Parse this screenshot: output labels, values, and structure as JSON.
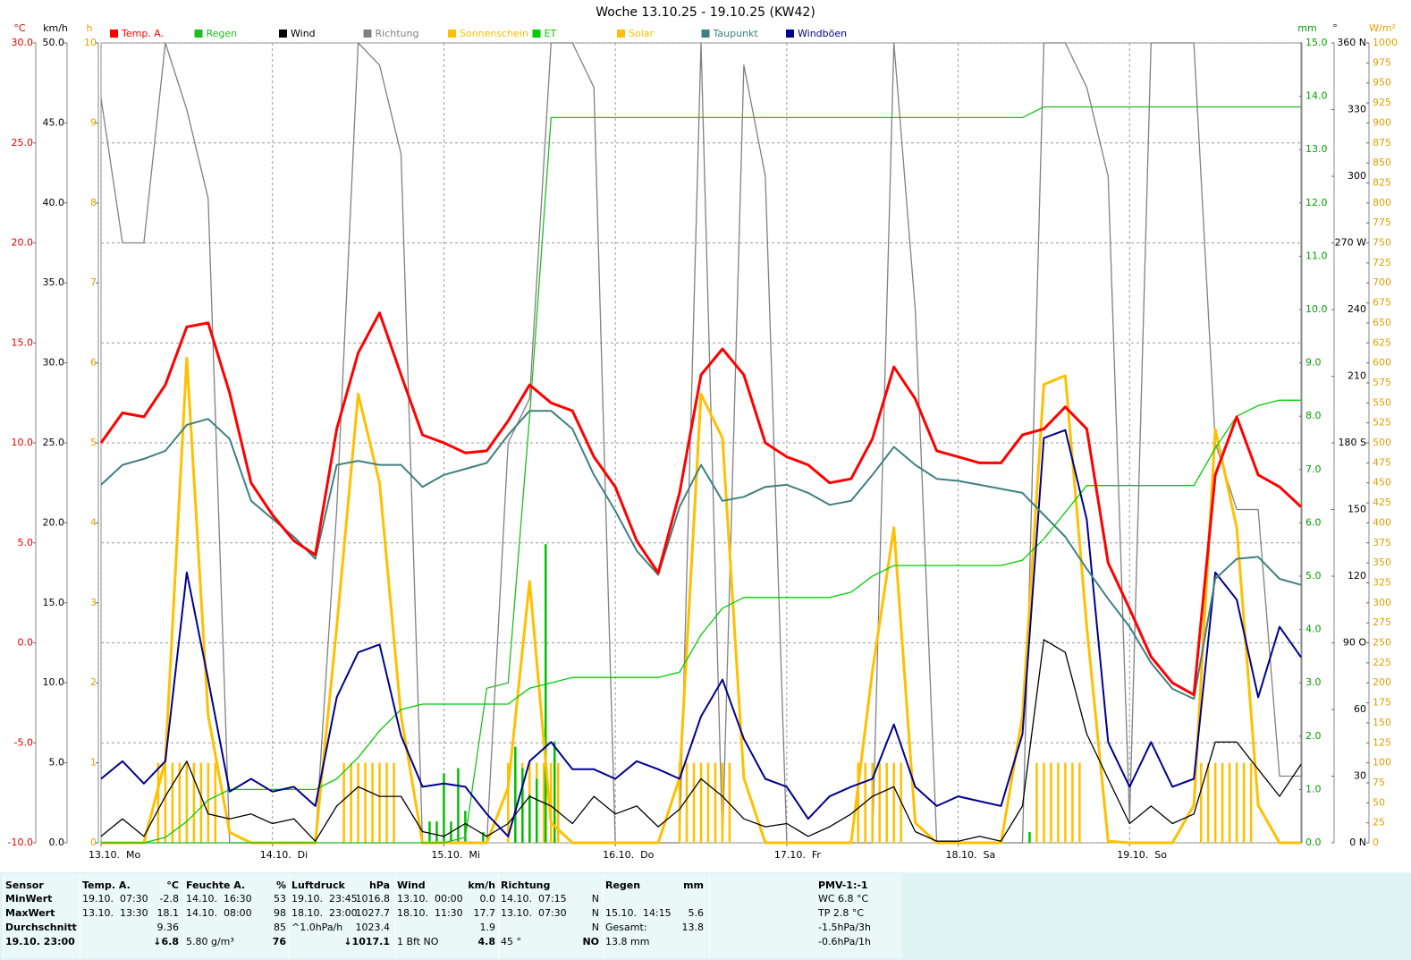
{
  "chart_data": {
    "type": "line",
    "title": "Woche 13.10.25 - 19.10.25 (KW42)",
    "xlim": [
      0,
      168
    ],
    "xticks": [
      {
        "value": 0,
        "label": "13.10.  Mo"
      },
      {
        "value": 24,
        "label": "14.10.  Di"
      },
      {
        "value": 48,
        "label": "15.10.  Mi"
      },
      {
        "value": 72,
        "label": "16.10.  Do"
      },
      {
        "value": 96,
        "label": "17.10.  Fr"
      },
      {
        "value": 120,
        "label": "18.10.  Sa"
      },
      {
        "value": 144,
        "label": "19.10.  So"
      }
    ],
    "ylabel": "°C",
    "ylim": [
      -10,
      30
    ],
    "yticks": [
      {
        "value": -10,
        "label": "-10.0"
      },
      {
        "value": -5,
        "label": "-5.0"
      },
      {
        "value": 0,
        "label": "0.0"
      },
      {
        "value": 5,
        "label": "5.0"
      },
      {
        "value": 10,
        "label": "10.0"
      },
      {
        "value": 15,
        "label": "15.0"
      },
      {
        "value": 20,
        "label": "20.0"
      },
      {
        "value": 25,
        "label": "25.0"
      },
      {
        "value": 30,
        "label": "30.0"
      }
    ],
    "y2label": "km/h",
    "y2lim": [
      0,
      50
    ],
    "y2ticks": [
      {
        "value": 0,
        "label": "0.0"
      },
      {
        "value": 5,
        "label": "5.0"
      },
      {
        "value": 10,
        "label": "10.0"
      },
      {
        "value": 15,
        "label": "15.0"
      },
      {
        "value": 20,
        "label": "20.0"
      },
      {
        "value": 25,
        "label": "25.0"
      },
      {
        "value": 30,
        "label": "30.0"
      },
      {
        "value": 35,
        "label": "35.0"
      },
      {
        "value": 40,
        "label": "40.0"
      },
      {
        "value": 45,
        "label": "45.0"
      },
      {
        "value": 50,
        "label": "50.0"
      }
    ],
    "y3label": "h",
    "y3lim": [
      0,
      10
    ],
    "y3ticks": [
      0,
      1,
      2,
      3,
      4,
      5,
      6,
      7,
      8,
      9,
      10
    ],
    "y4label": "mm",
    "y4lim": [
      0,
      15
    ],
    "y4ticks": [
      {
        "value": 0,
        "label": "0.0"
      },
      {
        "value": 1,
        "label": "1.0"
      },
      {
        "value": 2,
        "label": "2.0"
      },
      {
        "value": 3,
        "label": "3.0"
      },
      {
        "value": 4,
        "label": "4.0"
      },
      {
        "value": 5,
        "label": "5.0"
      },
      {
        "value": 6,
        "label": "6.0"
      },
      {
        "value": 7,
        "label": "7.0"
      },
      {
        "value": 8,
        "label": "8.0"
      },
      {
        "value": 9,
        "label": "9.0"
      },
      {
        "value": 10,
        "label": "10.0"
      },
      {
        "value": 11,
        "label": "11.0"
      },
      {
        "value": 12,
        "label": "12.0"
      },
      {
        "value": 13,
        "label": "13.0"
      },
      {
        "value": 14,
        "label": "14.0"
      },
      {
        "value": 15,
        "label": "15.0"
      }
    ],
    "y5label": "°",
    "y5lim": [
      0,
      360
    ],
    "y5ticks": [
      {
        "value": 0,
        "label": "0 N"
      },
      30,
      60,
      {
        "value": 90,
        "label": "90 O"
      },
      120,
      150,
      {
        "value": 180,
        "label": "180 S"
      },
      210,
      240,
      {
        "value": 270,
        "label": "270 W"
      },
      300,
      330,
      {
        "value": 360,
        "label": "360 N"
      }
    ],
    "y6label": "W/m²",
    "y6lim": [
      0,
      1000
    ],
    "y6ticks": [
      0,
      25,
      50,
      75,
      100,
      125,
      150,
      175,
      200,
      225,
      250,
      275,
      300,
      325,
      350,
      375,
      400,
      425,
      450,
      475,
      500,
      525,
      550,
      575,
      600,
      625,
      650,
      675,
      700,
      725,
      750,
      775,
      800,
      825,
      850,
      875,
      900,
      925,
      950,
      975,
      1000
    ],
    "grid": true,
    "x": [
      0,
      3,
      6,
      9,
      12,
      15,
      18,
      21,
      24,
      27,
      30,
      33,
      36,
      39,
      42,
      45,
      48,
      51,
      54,
      57,
      60,
      63,
      66,
      69,
      72,
      75,
      78,
      81,
      84,
      87,
      90,
      93,
      96,
      99,
      102,
      105,
      108,
      111,
      114,
      117,
      120,
      123,
      126,
      129,
      132,
      135,
      138,
      141,
      144,
      147,
      150,
      153,
      156,
      159,
      162,
      165,
      168
    ],
    "series": [
      {
        "name": "Temp. A.",
        "color": "#ff0000",
        "axis": "y",
        "kind": "line",
        "values": [
          10.0,
          11.5,
          11.3,
          12.9,
          15.8,
          16.0,
          12.5,
          8.0,
          6.4,
          5.1,
          4.4,
          10.7,
          14.5,
          16.5,
          13.4,
          10.4,
          10.0,
          9.5,
          9.6,
          11.1,
          12.9,
          12.0,
          11.6,
          9.3,
          7.8,
          5.1,
          3.5,
          7.5,
          13.4,
          14.7,
          13.4,
          10.0,
          9.3,
          8.9,
          8.0,
          8.2,
          10.2,
          13.8,
          12.2,
          9.6,
          9.3,
          9.0,
          9.0,
          10.4,
          10.7,
          11.8,
          10.7,
          4.0,
          1.7,
          -0.7,
          -2.0,
          -2.6,
          8.4,
          11.3,
          8.4,
          7.8,
          6.8
        ]
      },
      {
        "name": "Regen",
        "color": "#22bb22",
        "axis": "y4",
        "kind": "line",
        "values": [
          0,
          0,
          0,
          0,
          0,
          0,
          0,
          0,
          0,
          0,
          0,
          0,
          0,
          0,
          0,
          0,
          0,
          0.1,
          2.9,
          3.0,
          8.0,
          13.6,
          13.6,
          13.6,
          13.6,
          13.6,
          13.6,
          13.6,
          13.6,
          13.6,
          13.6,
          13.6,
          13.6,
          13.6,
          13.6,
          13.6,
          13.6,
          13.6,
          13.6,
          13.6,
          13.6,
          13.6,
          13.6,
          13.6,
          13.8,
          13.8,
          13.8,
          13.8,
          13.8,
          13.8,
          13.8,
          13.8,
          13.8,
          13.8,
          13.8,
          13.8,
          13.8
        ]
      },
      {
        "name": "Wind",
        "color": "#000000",
        "axis": "y2",
        "kind": "line",
        "values": [
          0.4,
          1.5,
          0.4,
          2.9,
          5.1,
          1.8,
          1.5,
          1.8,
          1.2,
          1.5,
          0.1,
          2.3,
          3.5,
          2.9,
          2.9,
          0.7,
          0.4,
          1.2,
          0.4,
          1.2,
          2.9,
          2.3,
          1.2,
          2.9,
          1.8,
          2.3,
          1.0,
          2.1,
          4.0,
          2.9,
          1.5,
          1.0,
          1.2,
          0.4,
          1.0,
          1.8,
          2.9,
          3.5,
          0.7,
          0.1,
          0.1,
          0.4,
          0.1,
          2.3,
          12.7,
          11.9,
          6.8,
          4.0,
          1.2,
          2.3,
          1.2,
          1.8,
          6.3,
          6.3,
          4.6,
          2.9,
          4.9
        ]
      },
      {
        "name": "Richtung",
        "color": "#808080",
        "axis": "y5",
        "kind": "line",
        "values": [
          335,
          270,
          270,
          360,
          330,
          290,
          0,
          0,
          0,
          0,
          0,
          150,
          360,
          350,
          310,
          0,
          0,
          0,
          0,
          180,
          200,
          360,
          360,
          340,
          0,
          0,
          0,
          0,
          360,
          0,
          350,
          300,
          0,
          0,
          0,
          0,
          0,
          360,
          240,
          0,
          0,
          0,
          0,
          0,
          360,
          360,
          340,
          300,
          10,
          360,
          360,
          360,
          180,
          150,
          150,
          30,
          30
        ]
      },
      {
        "name": "Sonnenschein",
        "color": "#ffc000",
        "axis": "y3",
        "kind": "bar",
        "x": [
          8,
          9,
          10,
          11,
          12,
          13,
          14,
          15,
          16,
          34,
          35,
          36,
          37,
          38,
          39,
          40,
          41,
          57,
          58,
          59,
          60,
          61,
          62,
          63,
          64,
          81,
          82,
          83,
          84,
          85,
          86,
          87,
          88,
          106,
          107,
          108,
          109,
          110,
          111,
          112,
          131,
          132,
          133,
          134,
          135,
          136,
          137,
          154,
          155,
          156,
          157,
          158,
          159,
          160,
          161
        ],
        "values": [
          1,
          1,
          1,
          1,
          1,
          1,
          1,
          1,
          1,
          1,
          1,
          1,
          1,
          1,
          1,
          1,
          1,
          1,
          1,
          1,
          1,
          1,
          1,
          1,
          1,
          1,
          1,
          1,
          1,
          1,
          1,
          1,
          1,
          1,
          1,
          1,
          1,
          1,
          1,
          1,
          1,
          1,
          1,
          1,
          1,
          1,
          1,
          1,
          1,
          1,
          1,
          1,
          1,
          1,
          1
        ]
      },
      {
        "name": "ET",
        "color": "#00cc00",
        "axis": "y4",
        "kind": "line",
        "values": [
          0,
          0,
          0,
          0.1,
          0.4,
          0.8,
          1.0,
          1.0,
          1.0,
          1.0,
          1.0,
          1.2,
          1.6,
          2.1,
          2.5,
          2.6,
          2.6,
          2.6,
          2.6,
          2.6,
          2.9,
          3.0,
          3.1,
          3.1,
          3.1,
          3.1,
          3.1,
          3.2,
          3.9,
          4.4,
          4.6,
          4.6,
          4.6,
          4.6,
          4.6,
          4.7,
          5.0,
          5.2,
          5.2,
          5.2,
          5.2,
          5.2,
          5.2,
          5.3,
          5.7,
          6.2,
          6.7,
          6.7,
          6.7,
          6.7,
          6.7,
          6.7,
          7.4,
          8.0,
          8.2,
          8.3,
          8.3
        ]
      },
      {
        "name": "Solar",
        "color": "#ffc000",
        "axis": "y6",
        "kind": "line",
        "values": [
          0,
          0,
          0,
          103,
          606,
          159,
          13,
          0,
          0,
          0,
          0,
          270,
          561,
          450,
          159,
          0,
          0,
          0,
          0,
          69,
          327,
          25,
          0,
          0,
          0,
          0,
          0,
          81,
          561,
          506,
          81,
          0,
          0,
          0,
          0,
          0,
          215,
          394,
          25,
          0,
          0,
          0,
          0,
          159,
          573,
          584,
          270,
          2,
          0,
          0,
          0,
          47,
          517,
          394,
          47,
          0,
          0
        ]
      },
      {
        "name": "Taupunkt",
        "color": "#408080",
        "axis": "y",
        "kind": "line",
        "values": [
          7.9,
          8.9,
          9.2,
          9.6,
          10.9,
          11.2,
          10.2,
          7.1,
          6.2,
          5.3,
          4.2,
          8.9,
          9.1,
          8.9,
          8.9,
          7.8,
          8.4,
          8.7,
          9.0,
          10.4,
          11.6,
          11.6,
          10.7,
          8.4,
          6.6,
          4.6,
          3.4,
          6.8,
          8.9,
          7.1,
          7.3,
          7.8,
          7.9,
          7.5,
          6.9,
          7.1,
          8.4,
          9.8,
          8.9,
          8.2,
          8.1,
          7.9,
          7.7,
          7.5,
          6.4,
          5.3,
          3.7,
          2.2,
          0.8,
          -1.0,
          -2.3,
          -2.8,
          3.2,
          4.2,
          4.3,
          3.2,
          2.9
        ]
      },
      {
        "name": "Windböen",
        "color": "#000090",
        "axis": "y2",
        "kind": "line",
        "values": [
          4.0,
          5.1,
          3.7,
          5.1,
          16.9,
          10.2,
          3.2,
          4.0,
          3.2,
          3.5,
          2.3,
          9.1,
          11.9,
          12.4,
          6.7,
          3.5,
          3.7,
          3.5,
          1.8,
          0.4,
          5.1,
          6.3,
          4.6,
          4.6,
          4.0,
          5.1,
          4.6,
          4.0,
          7.9,
          10.2,
          6.5,
          4.0,
          3.5,
          1.5,
          2.9,
          3.5,
          4.0,
          7.4,
          3.5,
          2.3,
          2.9,
          2.6,
          2.3,
          6.8,
          25.3,
          25.8,
          20.2,
          6.3,
          3.5,
          6.3,
          3.5,
          4.0,
          16.9,
          15.2,
          9.1,
          13.5,
          11.6
        ]
      },
      {
        "color": "#00c000",
        "axis": "y4",
        "kind": "bar",
        "x": [
          46,
          47,
          48,
          49,
          50,
          51,
          53.5,
          58,
          59,
          60,
          61,
          62.25,
          63.5,
          130
        ],
        "values": [
          0.4,
          0.4,
          1.3,
          0.4,
          1.4,
          0.6,
          0.2,
          1.8,
          1.4,
          0.9,
          1.2,
          5.6,
          1.9,
          0.2
        ]
      }
    ]
  },
  "table": {
    "header": [
      [
        "Sensor"
      ],
      [
        "Temp. A.",
        "°C"
      ],
      [
        "Feuchte A.",
        "%"
      ],
      [
        "Luftdruck",
        "hPa"
      ],
      [
        "Wind",
        "km/h"
      ],
      [
        "Richtung"
      ],
      [
        "Regen",
        "mm"
      ],
      [
        "PMV-1:-1"
      ]
    ],
    "rows": [
      [
        [
          "MinWert"
        ],
        [
          "19.10.  07:30",
          "-2.8"
        ],
        [
          "14.10.  16:30",
          "53"
        ],
        [
          "19.10.  23:45",
          "1016.8"
        ],
        [
          "13.10.  00:00",
          "0.0"
        ],
        [
          "14.10.  07:15",
          "N"
        ],
        [],
        [
          "WC 6.8 °C"
        ]
      ],
      [
        [
          "MaxWert"
        ],
        [
          "13.10.  13:30",
          "18.1"
        ],
        [
          "14.10.  08:00",
          "98"
        ],
        [
          "18.10.  23:00",
          "1027.7"
        ],
        [
          "18.10.  11:30",
          "17.7"
        ],
        [
          "13.10.  07:30",
          "N"
        ],
        [
          "15.10.  14:15",
          "5.6"
        ],
        [
          "TP 2.8 °C"
        ]
      ],
      [
        [
          "Durchschnitt"
        ],
        [
          "9.36"
        ],
        [
          "85"
        ],
        [
          "^1.0hPa/h",
          "1023.4"
        ],
        [
          "1.9"
        ],
        [
          "N"
        ],
        [
          "Gesamt:",
          "13.8"
        ],
        [
          "-1.5hPa/3h"
        ]
      ],
      [
        [
          "19.10. 23:00"
        ],
        [
          "↓6.8"
        ],
        [
          "5.80 g/m³",
          "76"
        ],
        [
          "↓1017.1"
        ],
        [
          "1 Bft NO",
          "4.8"
        ],
        [
          "45 °",
          "NO"
        ],
        [
          "13.8 mm"
        ],
        [
          "-0.6hPa/1h"
        ]
      ]
    ]
  }
}
